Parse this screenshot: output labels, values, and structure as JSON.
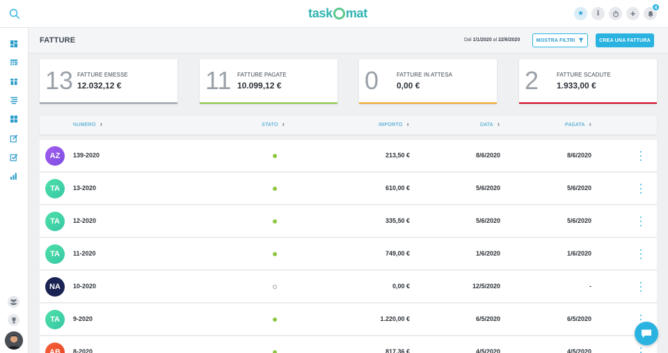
{
  "app": {
    "logo_text_left": "task",
    "logo_text_right": "mat"
  },
  "topbar": {
    "notifications_count": "4"
  },
  "header": {
    "title": "FATTURE",
    "date_prefix": "Dal",
    "date_from": "1/1/2020",
    "date_join": "al",
    "date_to": "22/6/2020",
    "filter_label": "MOSTRA FILTRI",
    "create_label": "CREA UNA FATTURA"
  },
  "cards": [
    {
      "count": "13",
      "label": "FATTURE EMESSE",
      "amount": "12.032,12 €",
      "color": "#9aa1a8"
    },
    {
      "count": "11",
      "label": "FATTURE PAGATE",
      "amount": "10.099,12 €",
      "color": "#8cc63f"
    },
    {
      "count": "0",
      "label": "FATTURE IN ATTESA",
      "amount": "0,00 €",
      "color": "#f5a623"
    },
    {
      "count": "2",
      "label": "FATTURE SCADUTE",
      "amount": "1.933,00 €",
      "color": "#d0021b"
    }
  ],
  "table": {
    "columns": {
      "numero": "NUMERO",
      "stato": "STATO",
      "importo": "IMPORTO",
      "data": "DATA",
      "pagata": "PAGATA"
    },
    "rows": [
      {
        "initials": "AZ",
        "numero": "139-2020",
        "status": "paid",
        "importo": "213,50 €",
        "data": "8/6/2020",
        "pagata": "8/6/2020"
      },
      {
        "initials": "TA",
        "numero": "13-2020",
        "status": "paid",
        "importo": "610,00 €",
        "data": "5/6/2020",
        "pagata": "5/6/2020"
      },
      {
        "initials": "TA",
        "numero": "12-2020",
        "status": "paid",
        "importo": "335,50 €",
        "data": "5/6/2020",
        "pagata": "5/6/2020"
      },
      {
        "initials": "TA",
        "numero": "11-2020",
        "status": "paid",
        "importo": "749,00 €",
        "data": "1/6/2020",
        "pagata": "1/6/2020"
      },
      {
        "initials": "NA",
        "numero": "10-2020",
        "status": "pending",
        "importo": "0,00 €",
        "data": "12/5/2020",
        "pagata": "-"
      },
      {
        "initials": "TA",
        "numero": "9-2020",
        "status": "paid",
        "importo": "1.220,00 €",
        "data": "6/5/2020",
        "pagata": "6/5/2020"
      },
      {
        "initials": "AB",
        "numero": "8-2020",
        "status": "paid",
        "importo": "817,36 €",
        "data": "4/5/2020",
        "pagata": "4/5/2020"
      }
    ]
  },
  "colors": {
    "accent": "#2ab3e0",
    "avatar_AZ": "#8e54e9",
    "avatar_TA": "#3fd1a0",
    "avatar_NA": "#1a2352",
    "avatar_AB": "#f0532c",
    "status_paid": "#8cc63f"
  },
  "icons": {
    "search": "search-icon",
    "sidebar": [
      "dashboard-icon",
      "calendar-icon",
      "projects-icon",
      "tasks-icon",
      "modules-icon",
      "invoices-icon",
      "checklist-icon",
      "reports-icon"
    ],
    "sidebar_bottom": [
      "team-icon",
      "trophy-icon"
    ],
    "topbar": [
      "star-icon",
      "info-icon",
      "timer-icon",
      "plus-icon",
      "bell-icon"
    ]
  }
}
